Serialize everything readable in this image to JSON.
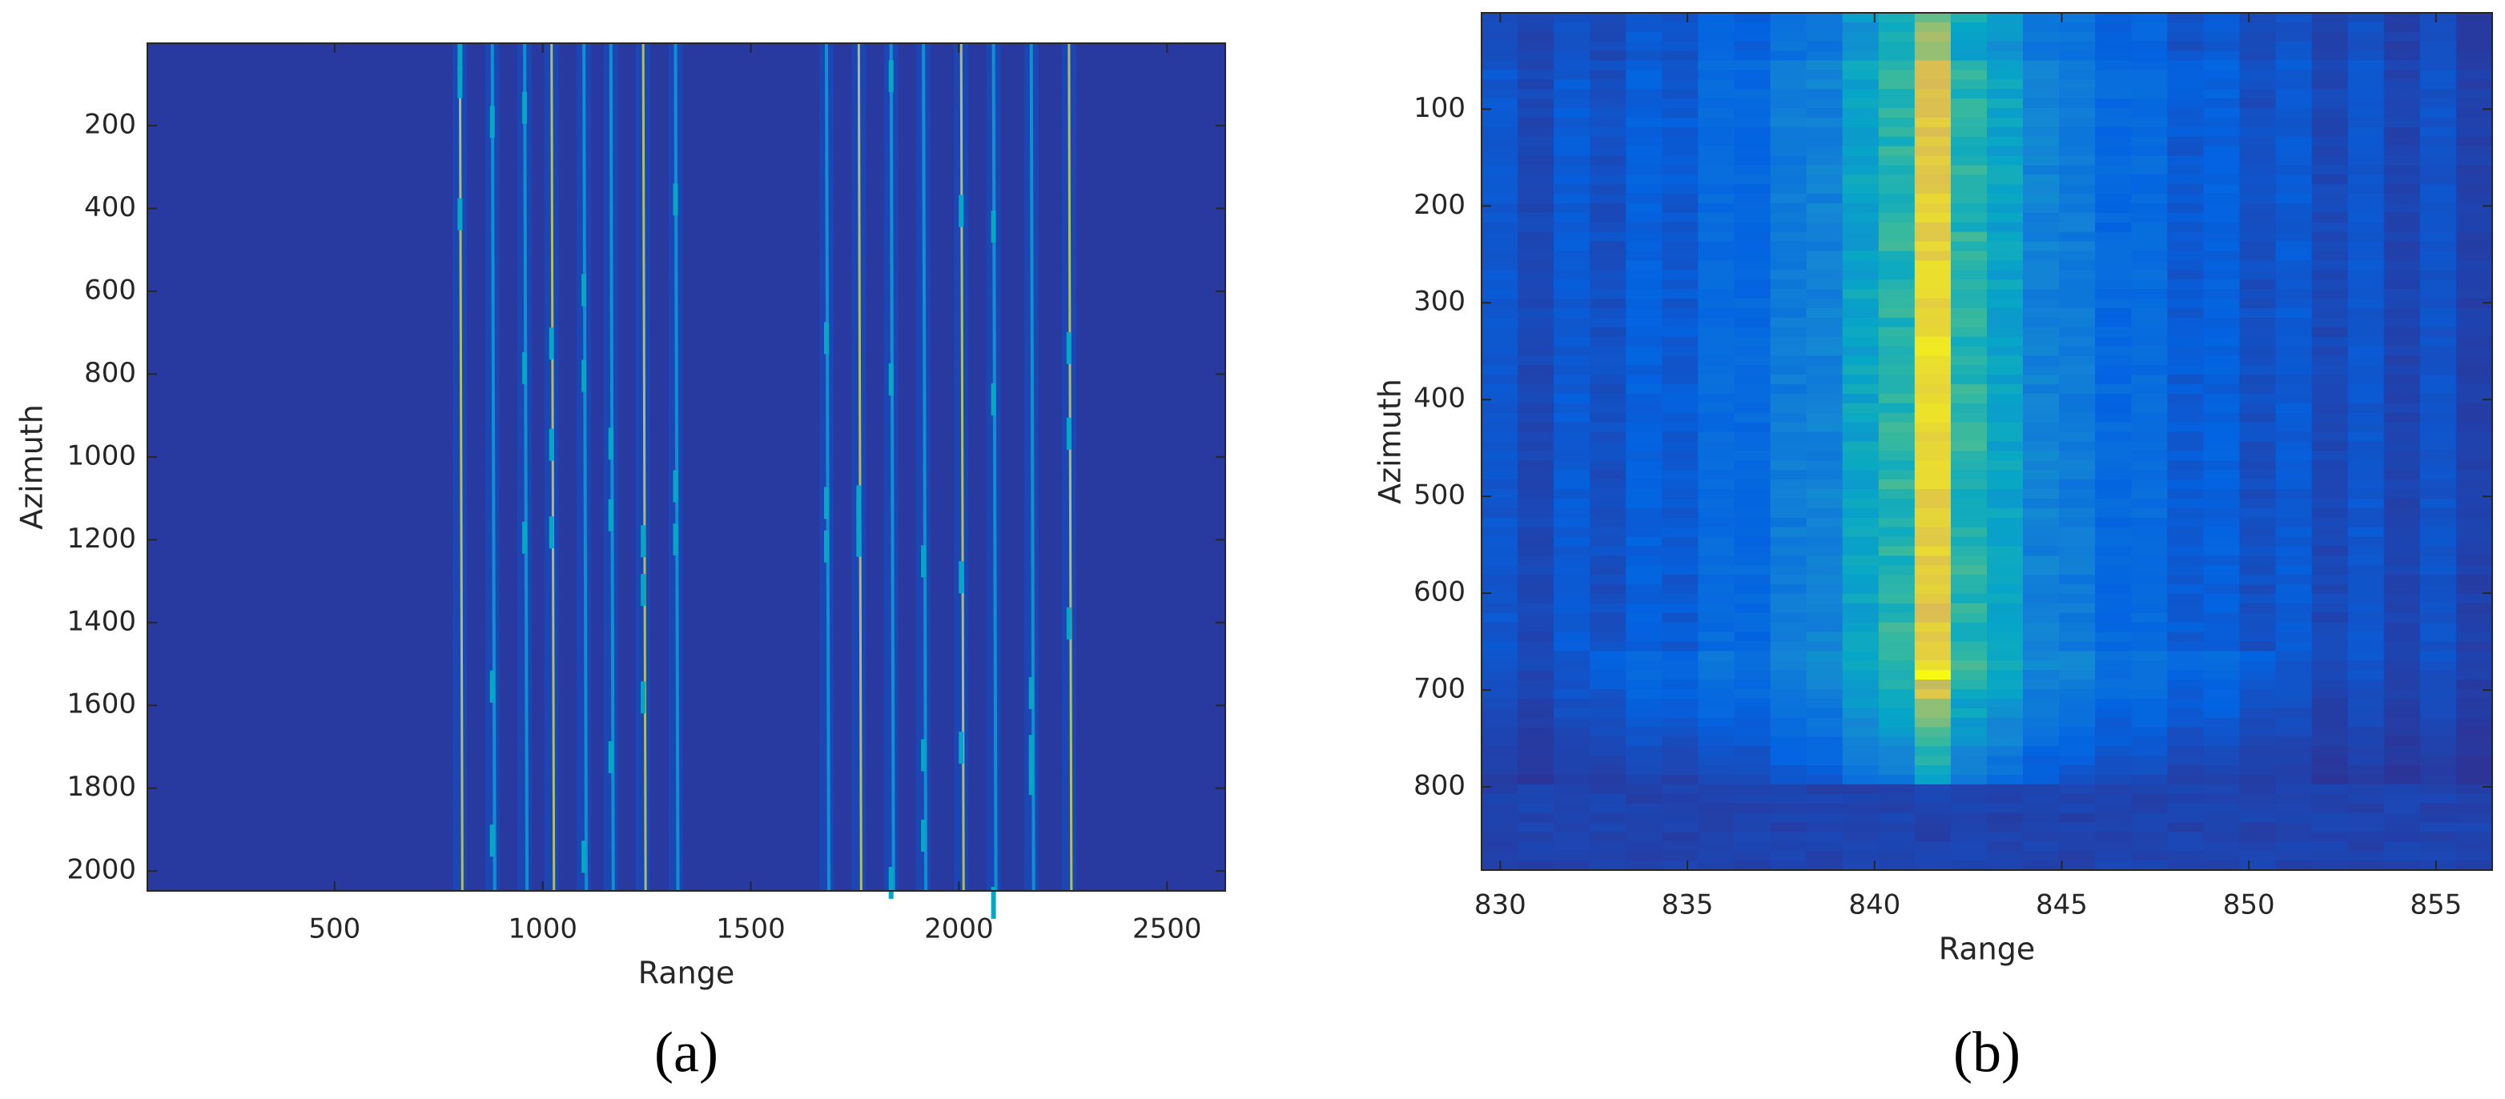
{
  "chart_data": [
    {
      "type": "image",
      "xlabel": "Range",
      "ylabel": "Azimuth",
      "caption": "(a)",
      "xlim": [
        50,
        2640
      ],
      "ylim": [
        1,
        2048
      ],
      "y_direction": "reverse",
      "xticks": [
        500,
        1000,
        1500,
        2000,
        2500
      ],
      "yticks": [
        200,
        400,
        600,
        800,
        1000,
        1200,
        1400,
        1600,
        1800,
        2000
      ]
    },
    {
      "type": "image",
      "xlabel": "Range",
      "ylabel": "Azimuth",
      "caption": "(b)",
      "xlim": [
        829.5,
        856.5
      ],
      "ylim": [
        0.5,
        886
      ],
      "y_direction": "reverse",
      "xticks": [
        830,
        835,
        840,
        845,
        850,
        855
      ],
      "yticks": [
        100,
        200,
        300,
        400,
        500,
        600,
        700,
        800
      ]
    }
  ]
}
